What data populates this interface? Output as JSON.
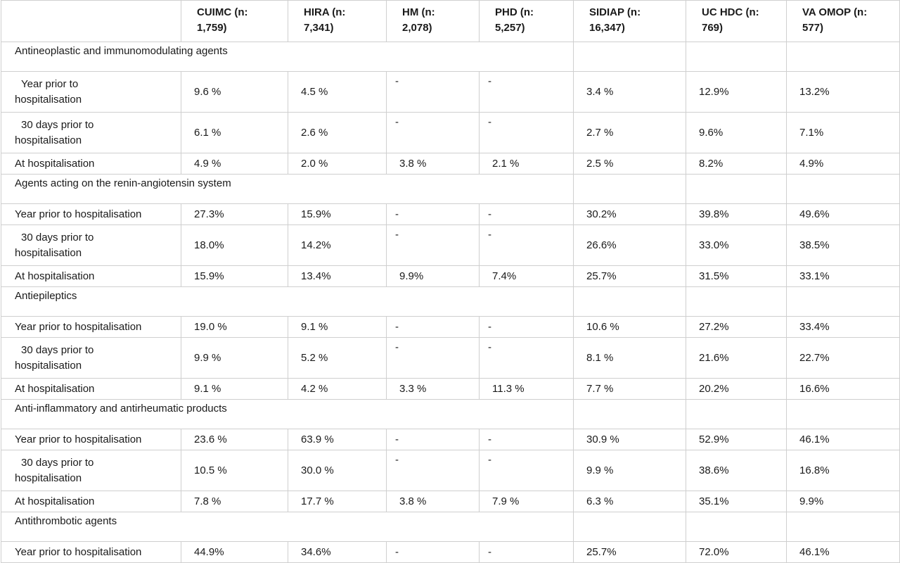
{
  "headers": [
    "",
    "CUIMC (n: 1,759)",
    "HIRA (n: 7,341)",
    "HM (n: 2,078)",
    "PHD (n: 5,257)",
    "SIDIAP (n: 16,347)",
    "UC HDC (n: 769)",
    "VA OMOP (n: 577)"
  ],
  "header_lines": [
    [
      "",
      ""
    ],
    [
      "CUIMC (n:",
      "1,759)"
    ],
    [
      "HIRA (n:",
      "7,341)"
    ],
    [
      "HM (n:",
      "2,078)"
    ],
    [
      "PHD (n:",
      "5,257)"
    ],
    [
      "SIDIAP (n:",
      "16,347)"
    ],
    [
      "UC HDC (n:",
      "769)"
    ],
    [
      "VA OMOP (n:",
      "577)"
    ]
  ],
  "sections": [
    {
      "title": "Antineoplastic and immunomodulating agents",
      "rows": [
        {
          "label": [
            "Year prior to",
            "hospitalisation"
          ],
          "values": [
            "9.6 %",
            "4.5 %",
            "-",
            "-",
            "3.4 %",
            "12.9%",
            "13.2%"
          ]
        },
        {
          "label": [
            "30 days prior to",
            "hospitalisation"
          ],
          "values": [
            "6.1 %",
            "2.6 %",
            "-",
            "-",
            "2.7 %",
            "9.6%",
            "7.1%"
          ]
        },
        {
          "label": [
            "At hospitalisation"
          ],
          "values": [
            "4.9 %",
            "2.0 %",
            "3.8 %",
            "2.1 %",
            "2.5 %",
            "8.2%",
            "4.9%"
          ]
        }
      ]
    },
    {
      "title": "Agents acting on the renin-angiotensin system",
      "rows": [
        {
          "label": [
            "Year prior to hospitalisation"
          ],
          "values": [
            "27.3%",
            "15.9%",
            "-",
            "-",
            "30.2%",
            "39.8%",
            "49.6%"
          ]
        },
        {
          "label": [
            "30 days prior to",
            "hospitalisation"
          ],
          "values": [
            "18.0%",
            "14.2%",
            "-",
            "-",
            "26.6%",
            "33.0%",
            "38.5%"
          ]
        },
        {
          "label": [
            "At hospitalisation"
          ],
          "values": [
            "15.9%",
            "13.4%",
            "9.9%",
            "7.4%",
            "25.7%",
            "31.5%",
            "33.1%"
          ]
        }
      ]
    },
    {
      "title": "Antiepileptics",
      "rows": [
        {
          "label": [
            "Year prior to hospitalisation"
          ],
          "values": [
            "19.0 %",
            "9.1 %",
            "-",
            "-",
            "10.6 %",
            "27.2%",
            "33.4%"
          ]
        },
        {
          "label": [
            "30 days prior to",
            "hospitalisation"
          ],
          "values": [
            "9.9 %",
            "5.2 %",
            "-",
            "-",
            "8.1 %",
            "21.6%",
            "22.7%"
          ]
        },
        {
          "label": [
            "At hospitalisation"
          ],
          "values": [
            "9.1 %",
            "4.2 %",
            "3.3 %",
            "11.3 %",
            "7.7 %",
            "20.2%",
            "16.6%"
          ]
        }
      ]
    },
    {
      "title": "Anti-inflammatory and antirheumatic products",
      "rows": [
        {
          "label": [
            "Year prior to hospitalisation"
          ],
          "values": [
            "23.6 %",
            "63.9 %",
            "-",
            "-",
            "30.9 %",
            "52.9%",
            "46.1%"
          ]
        },
        {
          "label": [
            "30 days prior to",
            "hospitalisation"
          ],
          "values": [
            "10.5 %",
            "30.0 %",
            "-",
            "-",
            "9.9 %",
            "38.6%",
            "16.8%"
          ]
        },
        {
          "label": [
            "At hospitalisation"
          ],
          "values": [
            "7.8 %",
            "17.7 %",
            "3.8 %",
            "7.9 %",
            "6.3 %",
            "35.1%",
            "9.9%"
          ]
        }
      ]
    },
    {
      "title": "Antithrombotic agents",
      "rows": [
        {
          "label": [
            "Year prior to hospitalisation"
          ],
          "values": [
            "44.9%",
            "34.6%",
            "-",
            "-",
            "25.7%",
            "72.0%",
            "46.1%"
          ]
        }
      ]
    }
  ]
}
